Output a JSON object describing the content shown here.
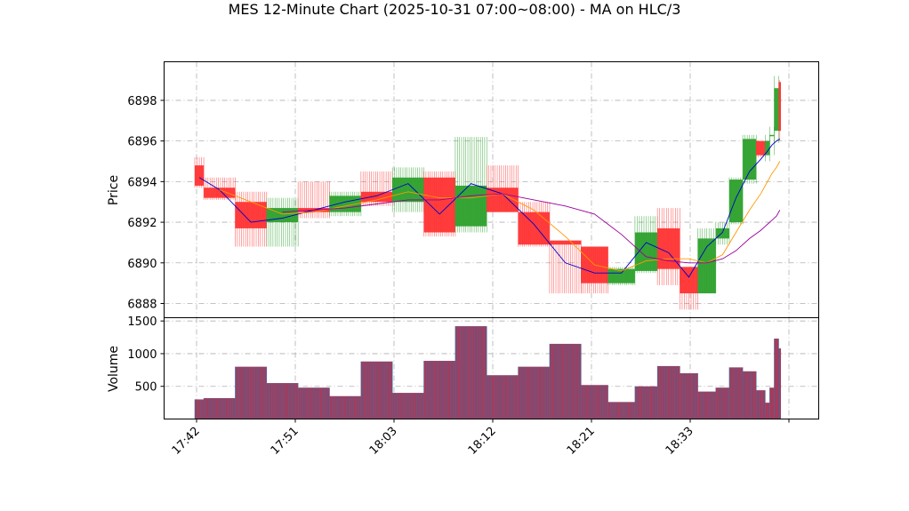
{
  "chart_data": [
    {
      "type": "candlestick",
      "panel": "price",
      "title": "MES 12-Minute Chart (2025-10-31 07:00~08:00) - MA on HLC/3",
      "ylabel": "Price",
      "ylim": [
        6887.3,
        6899.9
      ],
      "yticks": [
        6888,
        6890,
        6892,
        6894,
        6896,
        6898
      ],
      "grid": true,
      "x_tick_labels": [
        "17:42",
        "17:51",
        "18:03",
        "18:12",
        "18:21",
        "18:33"
      ],
      "up_color": "#2ca02c",
      "down_color": "#ff3333",
      "candles": [
        {
          "t": "17:42",
          "o": 6894.8,
          "h": 6895.2,
          "l": 6893.7,
          "c": 6893.8
        },
        {
          "t": "17:45",
          "o": 6893.7,
          "h": 6894.2,
          "l": 6893.1,
          "c": 6893.2
        },
        {
          "t": "17:48",
          "o": 6893.0,
          "h": 6893.5,
          "l": 6890.8,
          "c": 6891.7
        },
        {
          "t": "17:51",
          "o": 6892.0,
          "h": 6893.2,
          "l": 6890.8,
          "c": 6892.7
        },
        {
          "t": "17:54",
          "o": 6892.7,
          "h": 6894.0,
          "l": 6892.2,
          "c": 6892.5
        },
        {
          "t": "17:57",
          "o": 6892.5,
          "h": 6893.5,
          "l": 6892.3,
          "c": 6893.3
        },
        {
          "t": "18:00",
          "o": 6893.5,
          "h": 6894.5,
          "l": 6892.8,
          "c": 6893.0
        },
        {
          "t": "18:03",
          "o": 6893.0,
          "h": 6894.7,
          "l": 6892.5,
          "c": 6894.2
        },
        {
          "t": "18:06",
          "o": 6894.2,
          "h": 6894.5,
          "l": 6891.3,
          "c": 6891.5
        },
        {
          "t": "18:09",
          "o": 6891.8,
          "h": 6896.2,
          "l": 6891.5,
          "c": 6893.8
        },
        {
          "t": "18:12",
          "o": 6893.7,
          "h": 6894.8,
          "l": 6892.5,
          "c": 6892.5
        },
        {
          "t": "18:15",
          "o": 6892.5,
          "h": 6893.0,
          "l": 6890.8,
          "c": 6890.9
        },
        {
          "t": "18:18",
          "o": 6891.1,
          "h": 6891.1,
          "l": 6888.5,
          "c": 6890.9
        },
        {
          "t": "18:21",
          "o": 6890.8,
          "h": 6890.8,
          "l": 6888.5,
          "c": 6889.0
        },
        {
          "t": "18:24",
          "o": 6889.0,
          "h": 6889.8,
          "l": 6888.9,
          "c": 6889.7
        },
        {
          "t": "18:27",
          "o": 6889.6,
          "h": 6892.3,
          "l": 6889.5,
          "c": 6891.5
        },
        {
          "t": "18:30",
          "o": 6891.7,
          "h": 6892.7,
          "l": 6888.9,
          "c": 6889.7
        },
        {
          "t": "18:33",
          "o": 6889.8,
          "h": 6889.8,
          "l": 6887.7,
          "c": 6888.5
        },
        {
          "t": "18:36",
          "o": 6888.5,
          "h": 6891.7,
          "l": 6888.5,
          "c": 6891.2
        },
        {
          "t": "18:39",
          "o": 6891.2,
          "h": 6892.0,
          "l": 6890.9,
          "c": 6891.7
        },
        {
          "t": "18:40",
          "o": 6892.0,
          "h": 6894.2,
          "l": 6891.9,
          "c": 6894.1
        },
        {
          "t": "18:41",
          "o": 6894.1,
          "h": 6896.3,
          "l": 6893.9,
          "c": 6896.1
        },
        {
          "t": "18:42",
          "o": 6896.0,
          "h": 6896.0,
          "l": 6895.2,
          "c": 6895.3
        },
        {
          "t": "18:43",
          "o": 6895.3,
          "h": 6896.3,
          "l": 6895.0,
          "c": 6896.0
        },
        {
          "t": "18:43b",
          "o": 6896.3,
          "h": 6896.7,
          "l": 6895.3,
          "c": 6896.3
        },
        {
          "t": "18:44",
          "o": 6896.5,
          "h": 6899.2,
          "l": 6895.9,
          "c": 6898.6
        },
        {
          "t": "18:44b",
          "o": 6898.9,
          "h": 6899.0,
          "l": 6896.0,
          "c": 6896.5
        }
      ],
      "widths": [
        2,
        7,
        7,
        7,
        7,
        7,
        7,
        7,
        7,
        7,
        7,
        7,
        7,
        6,
        6,
        5,
        5,
        4,
        4,
        3,
        3,
        3,
        2,
        1,
        1,
        1,
        0.5
      ],
      "series": [
        {
          "color": "#0000cc",
          "values": [
            6894.2,
            6893.6,
            6892.0,
            6892.2,
            6892.6,
            6893.0,
            6893.3,
            6893.9,
            6892.4,
            6893.9,
            6893.4,
            6891.9,
            6890.0,
            6889.5,
            6889.5,
            6891.0,
            6890.5,
            6889.3,
            6890.8,
            6891.5,
            6893.2,
            6894.5,
            6895.1,
            6895.5,
            6895.8,
            6896.0,
            6896.1
          ]
        },
        {
          "color": "#ff9900",
          "values": [
            null,
            6893.6,
            6893.0,
            6892.4,
            6892.5,
            6892.8,
            6893.1,
            6893.5,
            6893.2,
            6893.2,
            6893.4,
            6892.6,
            6891.3,
            6889.9,
            6889.6,
            6890.1,
            6890.2,
            6890.2,
            6890.0,
            6890.4,
            6891.5,
            6892.6,
            6893.4,
            6894.0,
            6894.4,
            6894.7,
            6895.0
          ]
        },
        {
          "color": "#990099",
          "values": [
            null,
            null,
            null,
            6892.5,
            6892.6,
            6892.7,
            6892.9,
            6893.1,
            6893.1,
            6893.3,
            6893.4,
            6893.1,
            6892.8,
            6892.4,
            6891.4,
            6890.3,
            6890.1,
            6890.0,
            6890.0,
            6890.2,
            6890.6,
            6891.2,
            6891.6,
            6891.9,
            6892.1,
            6892.3,
            6892.6
          ]
        }
      ]
    },
    {
      "type": "bar",
      "panel": "volume",
      "ylabel": "Volume",
      "ylim": [
        0,
        1550
      ],
      "yticks": [
        500,
        1000,
        1500
      ],
      "grid": true,
      "values": [
        300,
        320,
        800,
        550,
        480,
        350,
        880,
        400,
        890,
        1420,
        670,
        800,
        1150,
        520,
        260,
        500,
        810,
        700,
        420,
        480,
        790,
        730,
        440,
        250,
        480,
        1230,
        1080
      ],
      "bar_fill": "#a83a5a",
      "bar_edge": "#1a7bb5"
    }
  ]
}
